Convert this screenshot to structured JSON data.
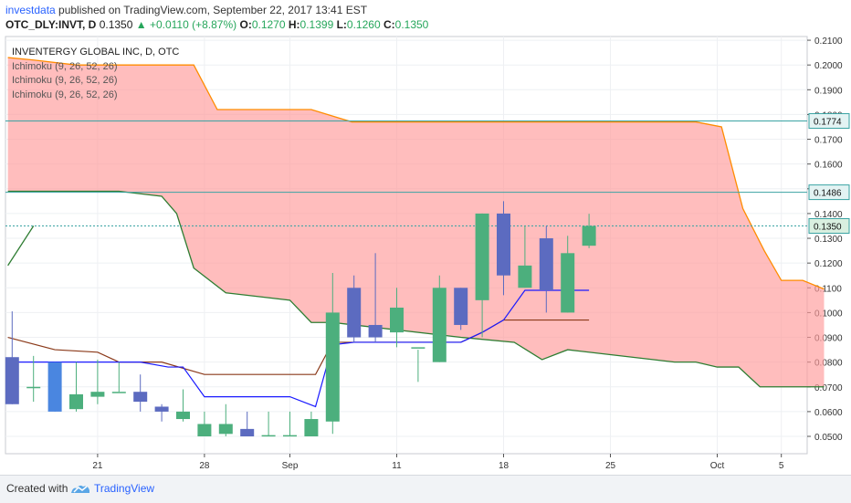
{
  "header": {
    "author": "investdata",
    "published_text": " published on TradingView.com, September 22, 2017 13:41 EST",
    "symbol": "OTC_DLY:INVT, D",
    "last": "0.1350",
    "change": "▲ +0.0110 (+8.87%)",
    "o_label": "O:",
    "o": "0.1270",
    "h_label": "H:",
    "h": "0.1399",
    "l_label": "L:",
    "l": "0.1260",
    "c_label": "C:",
    "c": "0.1350"
  },
  "legend": {
    "title": "INVENTERGY GLOBAL INC, D, OTC",
    "indicators": [
      "Ichimoku (9, 26, 52, 26)",
      "Ichimoku (9, 26, 52, 26)",
      "Ichimoku (9, 26, 52, 26)"
    ]
  },
  "footer": {
    "created_with": "Created with",
    "brand": "TradingView"
  },
  "colors": {
    "up": "#4caf7d",
    "down": "#5c6bc0",
    "down_bright": "#4a86e0",
    "cloud": "#ff9a9a",
    "span_b": "#ff8c00",
    "span_a": "#2e7d32",
    "tenkan": "#1a1aff",
    "kijun": "#8b3a1a"
  },
  "chart_data": {
    "type": "candlestick",
    "title": "INVENTERGY GLOBAL INC, D, OTC",
    "ylim": [
      0.043,
      0.2115
    ],
    "y_ticks": [
      "0.2100",
      "0.2000",
      "0.1900",
      "0.1800",
      "0.1700",
      "0.1600",
      "0.1500",
      "0.1400",
      "0.1300",
      "0.1200",
      "0.1100",
      "0.1000",
      "0.0900",
      "0.0800",
      "0.0700",
      "0.0600",
      "0.0500"
    ],
    "x_ticks": [
      {
        "label": "21",
        "i": 4
      },
      {
        "label": "28",
        "i": 9
      },
      {
        "label": "Sep",
        "i": 13
      },
      {
        "label": "11",
        "i": 18
      },
      {
        "label": "18",
        "i": 23
      },
      {
        "label": "25",
        "i": 28
      },
      {
        "label": "Oct",
        "i": 33
      },
      {
        "label": "5",
        "i": 36
      }
    ],
    "price_labels": [
      {
        "value": "0.1774",
        "y": 0.1774
      },
      {
        "value": "0.1486",
        "y": 0.1486
      },
      {
        "value": "0.1350",
        "y": 0.135
      }
    ],
    "candles": [
      {
        "i": 0,
        "o": 0.082,
        "h": 0.1005,
        "l": 0.063,
        "c": 0.063
      },
      {
        "i": 1,
        "o": 0.07,
        "h": 0.0825,
        "l": 0.064,
        "c": 0.07
      },
      {
        "i": 2,
        "o": 0.08,
        "h": 0.08,
        "l": 0.06,
        "c": 0.06
      },
      {
        "i": 3,
        "o": 0.061,
        "h": 0.08,
        "l": 0.06,
        "c": 0.067
      },
      {
        "i": 4,
        "o": 0.066,
        "h": 0.081,
        "l": 0.063,
        "c": 0.068
      },
      {
        "i": 5,
        "o": 0.068,
        "h": 0.08,
        "l": 0.068,
        "c": 0.068
      },
      {
        "i": 6,
        "o": 0.068,
        "h": 0.075,
        "l": 0.06,
        "c": 0.064
      },
      {
        "i": 7,
        "o": 0.062,
        "h": 0.063,
        "l": 0.056,
        "c": 0.06
      },
      {
        "i": 8,
        "o": 0.057,
        "h": 0.069,
        "l": 0.056,
        "c": 0.06
      },
      {
        "i": 9,
        "o": 0.05,
        "h": 0.06,
        "l": 0.05,
        "c": 0.055
      },
      {
        "i": 10,
        "o": 0.051,
        "h": 0.063,
        "l": 0.05,
        "c": 0.055
      },
      {
        "i": 11,
        "o": 0.053,
        "h": 0.06,
        "l": 0.05,
        "c": 0.05
      },
      {
        "i": 12,
        "o": 0.05,
        "h": 0.06,
        "l": 0.05,
        "c": 0.0505
      },
      {
        "i": 13,
        "o": 0.05,
        "h": 0.06,
        "l": 0.05,
        "c": 0.0505
      },
      {
        "i": 14,
        "o": 0.05,
        "h": 0.06,
        "l": 0.05,
        "c": 0.057
      },
      {
        "i": 15,
        "o": 0.056,
        "h": 0.116,
        "l": 0.051,
        "c": 0.1
      },
      {
        "i": 16,
        "o": 0.11,
        "h": 0.115,
        "l": 0.088,
        "c": 0.09
      },
      {
        "i": 17,
        "o": 0.095,
        "h": 0.124,
        "l": 0.088,
        "c": 0.09
      },
      {
        "i": 18,
        "o": 0.092,
        "h": 0.11,
        "l": 0.086,
        "c": 0.102
      },
      {
        "i": 19,
        "o": 0.086,
        "h": 0.085,
        "l": 0.072,
        "c": 0.086
      },
      {
        "i": 20,
        "o": 0.08,
        "h": 0.115,
        "l": 0.08,
        "c": 0.11
      },
      {
        "i": 21,
        "o": 0.11,
        "h": 0.11,
        "l": 0.093,
        "c": 0.095
      },
      {
        "i": 22,
        "o": 0.105,
        "h": 0.14,
        "l": 0.09,
        "c": 0.14
      },
      {
        "i": 23,
        "o": 0.14,
        "h": 0.145,
        "l": 0.107,
        "c": 0.115
      },
      {
        "i": 24,
        "o": 0.11,
        "h": 0.135,
        "l": 0.11,
        "c": 0.119
      },
      {
        "i": 25,
        "o": 0.13,
        "h": 0.135,
        "l": 0.1,
        "c": 0.109
      },
      {
        "i": 26,
        "o": 0.1,
        "h": 0.131,
        "l": 0.1,
        "c": 0.124
      },
      {
        "i": 27,
        "o": 0.127,
        "h": 0.1399,
        "l": 0.126,
        "c": 0.135
      }
    ],
    "span_b": [
      [
        -0.2,
        0.203
      ],
      [
        1,
        0.202
      ],
      [
        3,
        0.2
      ],
      [
        5,
        0.2
      ],
      [
        6.2,
        0.2
      ],
      [
        7,
        0.2
      ],
      [
        8.5,
        0.2
      ],
      [
        9.6,
        0.182
      ],
      [
        14,
        0.182
      ],
      [
        15.9,
        0.177
      ],
      [
        32,
        0.177
      ],
      [
        33.2,
        0.175
      ],
      [
        34.2,
        0.142
      ],
      [
        35.2,
        0.125
      ],
      [
        36,
        0.113
      ],
      [
        37,
        0.113
      ],
      [
        38,
        0.1095
      ]
    ],
    "span_a": [
      [
        -0.2,
        0.149
      ],
      [
        5,
        0.149
      ],
      [
        7,
        0.147
      ],
      [
        7.7,
        0.14
      ],
      [
        8.5,
        0.118
      ],
      [
        10,
        0.108
      ],
      [
        13,
        0.105
      ],
      [
        14,
        0.096
      ],
      [
        15,
        0.096
      ],
      [
        21,
        0.09
      ],
      [
        23.5,
        0.088
      ],
      [
        24.8,
        0.081
      ],
      [
        26,
        0.085
      ],
      [
        28,
        0.083
      ],
      [
        31,
        0.08
      ],
      [
        32,
        0.08
      ],
      [
        33,
        0.078
      ],
      [
        34,
        0.078
      ],
      [
        35,
        0.07
      ],
      [
        38,
        0.07
      ]
    ],
    "span_a_top": [
      [
        -0.2,
        0.119
      ],
      [
        1,
        0.135
      ]
    ],
    "tenkan": [
      [
        -0.2,
        0.08
      ],
      [
        6,
        0.08
      ],
      [
        7.3,
        0.078
      ],
      [
        8,
        0.078
      ],
      [
        9,
        0.066
      ],
      [
        13,
        0.066
      ],
      [
        14.2,
        0.062
      ],
      [
        15,
        0.087
      ],
      [
        16,
        0.088
      ],
      [
        21,
        0.088
      ],
      [
        22,
        0.092
      ],
      [
        23,
        0.097
      ],
      [
        24,
        0.109
      ],
      [
        27,
        0.109
      ]
    ],
    "kijun": [
      [
        -0.2,
        0.09
      ],
      [
        2,
        0.085
      ],
      [
        4,
        0.084
      ],
      [
        5,
        0.08
      ],
      [
        7,
        0.08
      ],
      [
        9,
        0.075
      ],
      [
        14.2,
        0.075
      ],
      [
        15,
        0.088
      ],
      [
        16,
        0.088
      ],
      [
        21,
        0.088
      ],
      [
        22,
        0.092
      ],
      [
        23,
        0.097
      ],
      [
        27,
        0.097
      ]
    ]
  }
}
